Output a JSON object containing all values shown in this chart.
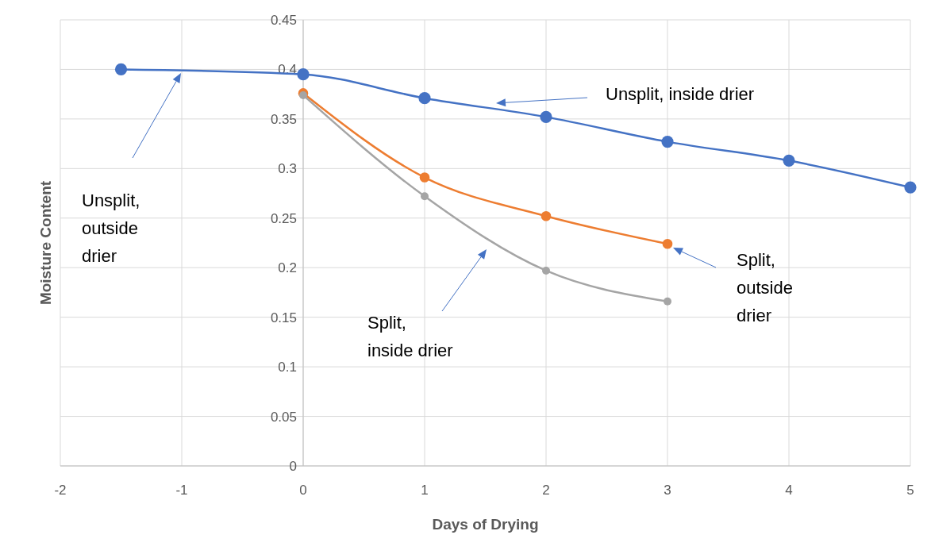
{
  "chart_data": {
    "type": "line",
    "xlabel": "Days of Drying",
    "ylabel": "Moisture Content",
    "xlim": [
      -2,
      5
    ],
    "xticks": [
      -2,
      -1,
      0,
      1,
      2,
      3,
      4,
      5
    ],
    "ylim": [
      0,
      0.45
    ],
    "yticks": [
      0,
      0.05,
      0.1,
      0.15,
      0.2,
      0.25,
      0.3,
      0.35,
      0.4,
      0.45
    ],
    "grid": true,
    "marker": "circle",
    "line_style": "solid",
    "series": [
      {
        "color": "#4472c4",
        "x": [
          -1.5,
          0,
          1,
          2,
          3,
          4,
          5
        ],
        "values": [
          0.4,
          0.395,
          0.371,
          0.352,
          0.327,
          0.308,
          0.281
        ]
      },
      {
        "color": "#ed7d31",
        "x": [
          0,
          1,
          2,
          3
        ],
        "values": [
          0.376,
          0.291,
          0.252,
          0.224
        ]
      },
      {
        "color": "#a5a5a5",
        "x": [
          0,
          1,
          2,
          3
        ],
        "values": [
          0.374,
          0.272,
          0.197,
          0.166
        ]
      }
    ],
    "annotations": [
      "Unsplit, inside drier",
      "Unsplit, outside drier",
      "Split, outside drier",
      "Split, inside drier"
    ]
  }
}
